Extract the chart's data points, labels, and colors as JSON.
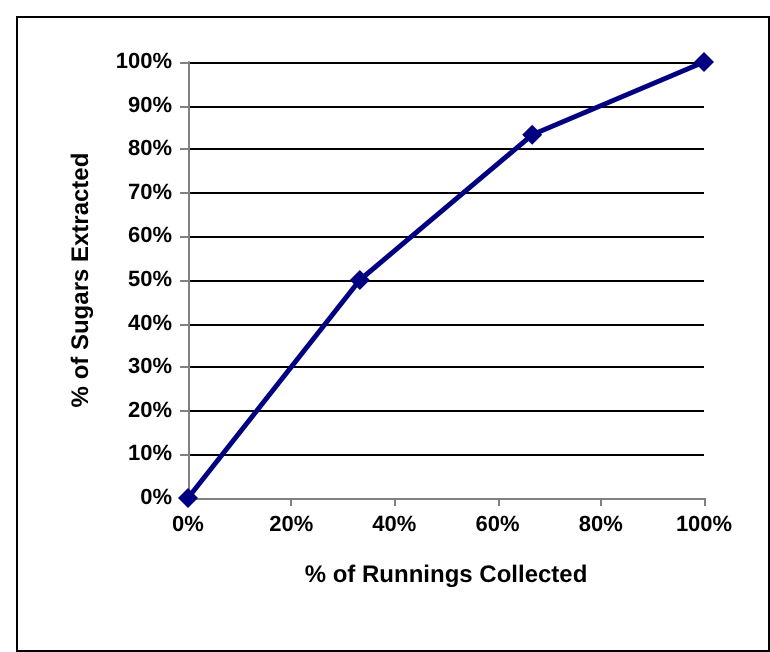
{
  "chart_data": {
    "type": "line",
    "xlabel": "% of Runnings Collected",
    "ylabel": "% of Sugars Extracted",
    "x": [
      0,
      33.3,
      66.7,
      100
    ],
    "series": [
      {
        "color": "#000080",
        "values": [
          0,
          50,
          83.3,
          100
        ]
      }
    ],
    "xlim": [
      0,
      100
    ],
    "xticks": [
      {
        "value": 0,
        "label": "0%"
      },
      {
        "value": 20,
        "label": "20%"
      },
      {
        "value": 40,
        "label": "40%"
      },
      {
        "value": 60,
        "label": "60%"
      },
      {
        "value": 80,
        "label": "80%"
      },
      {
        "value": 100,
        "label": "100%"
      }
    ],
    "ylim": [
      0,
      100
    ],
    "yticks": [
      {
        "value": 0,
        "label": "0%"
      },
      {
        "value": 10,
        "label": "10%"
      },
      {
        "value": 20,
        "label": "20%"
      },
      {
        "value": 30,
        "label": "30%"
      },
      {
        "value": 40,
        "label": "40%"
      },
      {
        "value": 50,
        "label": "50%"
      },
      {
        "value": 60,
        "label": "60%"
      },
      {
        "value": 70,
        "label": "70%"
      },
      {
        "value": 80,
        "label": "80%"
      },
      {
        "value": 90,
        "label": "90%"
      },
      {
        "value": 100,
        "label": "100%"
      }
    ],
    "grid": "y",
    "marker": "diamond",
    "line_style": "solid"
  }
}
